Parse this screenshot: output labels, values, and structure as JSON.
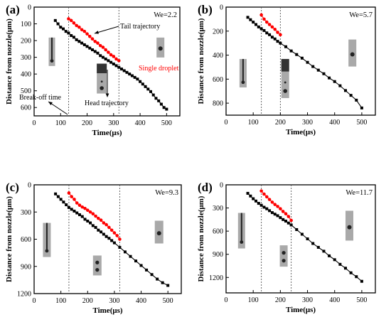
{
  "figure": {
    "colors": {
      "head": "#000000",
      "tail": "#ff0000",
      "single_droplet_label": "#ff0000",
      "photo_strip": "#a9a9a9",
      "photo_dark": "#222222"
    },
    "x_axis_label": "Time(μs)",
    "y_axis_label": "Distance from nozzle(μm)",
    "marker_types": {
      "head": "square",
      "tail": "circle"
    }
  },
  "chart_data": [
    {
      "type": "scatter",
      "panel_label": "(a)",
      "weber_label": "We=2.2",
      "xlabel": "Time(μs)",
      "ylabel": "Distance from nozzle(μm)",
      "xlim": [
        0,
        550
      ],
      "ylim": [
        0,
        650
      ],
      "y_inverted": true,
      "x_ticks": [
        0,
        100,
        200,
        300,
        400,
        500
      ],
      "y_ticks": [
        0,
        100,
        200,
        300,
        400,
        500,
        600
      ],
      "vlines": [
        130,
        320
      ],
      "annotations": [
        "Tail trajectory",
        "Single droplet",
        "Break-off time",
        "Head trajectory"
      ],
      "series": [
        {
          "role": "head",
          "x": [
            80,
            90,
            100,
            110,
            120,
            130,
            140,
            150,
            160,
            170,
            180,
            190,
            200,
            210,
            220,
            230,
            240,
            250,
            260,
            270,
            280,
            290,
            300,
            310,
            320,
            330,
            340,
            350,
            360,
            370,
            380,
            390,
            400,
            410,
            420,
            430,
            440,
            450,
            460,
            470,
            480,
            490,
            500
          ],
          "y": [
            80,
            100,
            120,
            130,
            145,
            155,
            170,
            180,
            195,
            205,
            215,
            225,
            235,
            245,
            255,
            265,
            275,
            290,
            300,
            310,
            320,
            330,
            340,
            350,
            360,
            370,
            380,
            390,
            400,
            410,
            420,
            430,
            445,
            460,
            475,
            490,
            505,
            525,
            545,
            560,
            580,
            600,
            610
          ]
        },
        {
          "role": "tail",
          "x": [
            130,
            140,
            150,
            160,
            170,
            180,
            190,
            200,
            210,
            220,
            230,
            240,
            250,
            260,
            270,
            280,
            290,
            300,
            310,
            320
          ],
          "y": [
            70,
            80,
            95,
            110,
            120,
            135,
            145,
            160,
            175,
            190,
            205,
            215,
            230,
            240,
            255,
            270,
            285,
            295,
            310,
            320
          ]
        }
      ]
    },
    {
      "type": "scatter",
      "panel_label": "(b)",
      "weber_label": "We=5.7",
      "xlabel": "Time(μs)",
      "ylabel": "Distance from nozzle(μm)",
      "xlim": [
        0,
        550
      ],
      "ylim": [
        0,
        900
      ],
      "y_inverted": true,
      "x_ticks": [
        0,
        100,
        200,
        300,
        400,
        500
      ],
      "y_ticks": [
        0,
        200,
        400,
        600,
        800
      ],
      "vlines": [
        130,
        200
      ],
      "annotations": [],
      "series": [
        {
          "role": "head",
          "x": [
            80,
            90,
            100,
            110,
            120,
            130,
            140,
            150,
            160,
            170,
            180,
            190,
            200,
            220,
            240,
            260,
            280,
            300,
            320,
            340,
            360,
            380,
            400,
            420,
            440,
            460,
            480,
            500
          ],
          "y": [
            85,
            105,
            125,
            145,
            165,
            180,
            195,
            215,
            230,
            250,
            265,
            285,
            300,
            330,
            365,
            395,
            425,
            460,
            495,
            525,
            555,
            590,
            620,
            655,
            695,
            735,
            775,
            840
          ]
        },
        {
          "role": "tail",
          "x": [
            130,
            140,
            150,
            160,
            170,
            180,
            190,
            200
          ],
          "y": [
            65,
            100,
            125,
            145,
            165,
            185,
            210,
            230
          ]
        }
      ]
    },
    {
      "type": "scatter",
      "panel_label": "(c)",
      "weber_label": "We=9.3",
      "xlabel": "Time(μs)",
      "ylabel": "Distance from nozzle(μm)",
      "xlim": [
        0,
        550
      ],
      "ylim": [
        0,
        1200
      ],
      "y_inverted": true,
      "x_ticks": [
        0,
        100,
        200,
        300,
        400,
        500
      ],
      "y_ticks": [
        0,
        300,
        600,
        900,
        1200
      ],
      "vlines": [
        130,
        320
      ],
      "annotations": [],
      "series": [
        {
          "role": "head",
          "x": [
            80,
            90,
            100,
            110,
            120,
            130,
            140,
            150,
            160,
            170,
            180,
            190,
            200,
            210,
            220,
            230,
            240,
            250,
            260,
            270,
            280,
            290,
            300,
            320,
            340,
            360,
            380,
            400,
            420,
            440,
            460,
            480,
            500
          ],
          "y": [
            100,
            130,
            160,
            190,
            220,
            250,
            270,
            290,
            310,
            330,
            350,
            380,
            400,
            420,
            450,
            470,
            500,
            520,
            545,
            570,
            590,
            615,
            640,
            690,
            740,
            790,
            840,
            890,
            940,
            990,
            1040,
            1080,
            1110
          ]
        },
        {
          "role": "tail",
          "x": [
            130,
            140,
            150,
            160,
            170,
            180,
            190,
            200,
            210,
            220,
            230,
            240,
            250,
            260,
            270,
            280,
            290,
            300,
            310,
            320
          ],
          "y": [
            90,
            130,
            160,
            200,
            225,
            245,
            260,
            280,
            300,
            320,
            345,
            370,
            390,
            420,
            440,
            470,
            500,
            530,
            560,
            600
          ]
        }
      ]
    },
    {
      "type": "scatter",
      "panel_label": "(d)",
      "weber_label": "We=11.7",
      "xlabel": "Time(μs)",
      "ylabel": "Distance from nozzle(μm)",
      "xlim": [
        0,
        550
      ],
      "ylim": [
        0,
        1400
      ],
      "y_inverted": true,
      "x_ticks": [
        0,
        100,
        200,
        300,
        400,
        500
      ],
      "y_ticks": [
        0,
        300,
        600,
        900,
        1200
      ],
      "vlines": [
        130,
        240
      ],
      "annotations": [],
      "series": [
        {
          "role": "head",
          "x": [
            80,
            90,
            100,
            110,
            120,
            130,
            140,
            150,
            160,
            170,
            180,
            190,
            200,
            210,
            220,
            230,
            240,
            260,
            280,
            300,
            320,
            340,
            360,
            380,
            400,
            420,
            440,
            460,
            480,
            500
          ],
          "y": [
            110,
            145,
            180,
            210,
            240,
            265,
            290,
            310,
            335,
            360,
            380,
            400,
            425,
            450,
            470,
            495,
            520,
            580,
            640,
            700,
            760,
            810,
            860,
            920,
            970,
            1030,
            1080,
            1140,
            1190,
            1250
          ]
        },
        {
          "role": "tail",
          "x": [
            130,
            140,
            150,
            160,
            170,
            180,
            190,
            200,
            210,
            220,
            230,
            240
          ],
          "y": [
            80,
            120,
            155,
            190,
            225,
            255,
            280,
            310,
            345,
            375,
            410,
            460
          ]
        }
      ]
    }
  ]
}
